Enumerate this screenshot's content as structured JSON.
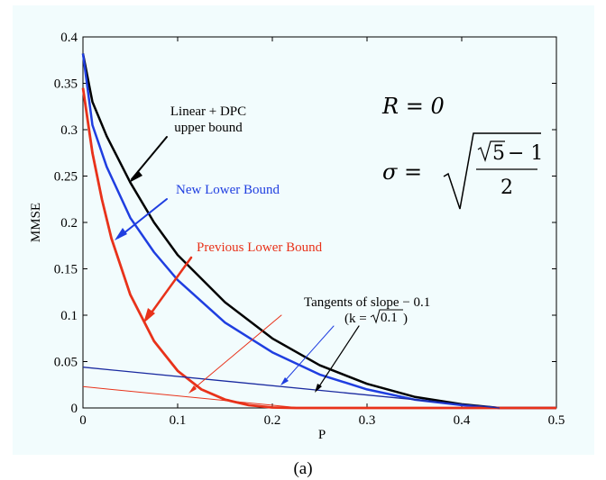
{
  "chart_data": {
    "type": "line",
    "xlabel": "P",
    "ylabel": "MMSE",
    "xlim": [
      0,
      0.5
    ],
    "ylim": [
      0,
      0.4
    ],
    "xticks": [
      "0",
      "0.1",
      "0.2",
      "0.3",
      "0.4",
      "0.5"
    ],
    "yticks": [
      "0",
      "0.05",
      "0.1",
      "0.15",
      "0.2",
      "0.25",
      "0.3",
      "0.35",
      "0.4"
    ],
    "grid": false,
    "caption": "(a)",
    "series": [
      {
        "name": "Linear + DPC upper bound",
        "color": "#000000",
        "x": [
          0,
          0.01,
          0.025,
          0.05,
          0.075,
          0.1,
          0.15,
          0.2,
          0.25,
          0.3,
          0.35,
          0.4,
          0.44,
          0.5
        ],
        "y": [
          0.382,
          0.33,
          0.293,
          0.243,
          0.2,
          0.165,
          0.114,
          0.075,
          0.046,
          0.026,
          0.012,
          0.004,
          0.0,
          0.0
        ]
      },
      {
        "name": "New Lower Bound",
        "color": "#1f3ee0",
        "x": [
          0,
          0.01,
          0.025,
          0.05,
          0.075,
          0.1,
          0.15,
          0.2,
          0.25,
          0.3,
          0.35,
          0.4,
          0.44,
          0.5
        ],
        "y": [
          0.382,
          0.305,
          0.26,
          0.205,
          0.168,
          0.138,
          0.092,
          0.06,
          0.036,
          0.02,
          0.009,
          0.003,
          0.0,
          0.0
        ]
      },
      {
        "name": "Previous Lower Bound",
        "color": "#e8321a",
        "x": [
          0,
          0.01,
          0.02,
          0.03,
          0.05,
          0.075,
          0.1,
          0.125,
          0.15,
          0.175,
          0.2,
          0.225,
          0.25,
          0.5
        ],
        "y": [
          0.345,
          0.275,
          0.225,
          0.183,
          0.122,
          0.072,
          0.04,
          0.02,
          0.009,
          0.003,
          0.0005,
          0.0,
          0.0,
          0.0
        ]
      },
      {
        "name": "Tangent (New Lower Bound)",
        "color": "#1a2aa0",
        "x": [
          0,
          0.44
        ],
        "y": [
          0.044,
          0.0
        ]
      },
      {
        "name": "Tangent (Previous Lower Bound)",
        "color": "#e8321a",
        "x": [
          0,
          0.23
        ],
        "y": [
          0.023,
          0.0
        ]
      }
    ],
    "annotations": {
      "upper": [
        "Linear + DPC",
        "upper bound"
      ],
      "new_lower": "New Lower Bound",
      "prev_lower": "Previous Lower Bound",
      "tangent_line1": "Tangents of slope  − 0.1",
      "tangent_k_prefix": "(k =",
      "tangent_k_root": "0.1",
      "tangent_k_suffix": ")",
      "R_eq": "R = 0",
      "sigma_lhs": "σ =",
      "sigma_root5": "5",
      "sigma_minus1": "− 1",
      "sigma_den": "2"
    }
  }
}
